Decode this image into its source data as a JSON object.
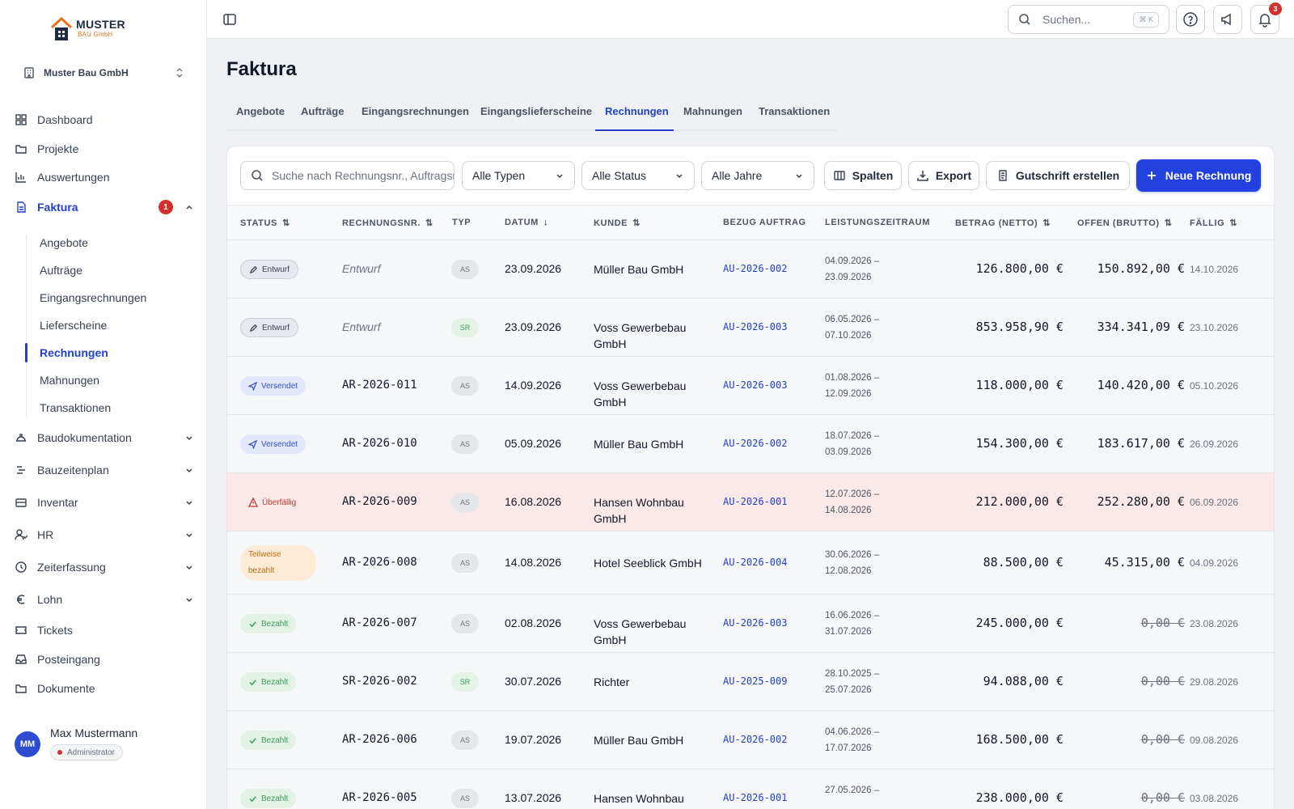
{
  "brand": {
    "name": "MUSTER",
    "sub": "BAU GmbH"
  },
  "company": "Muster Bau GmbH",
  "nav": [
    {
      "label": "Dashboard",
      "icon": "dashboard-icon"
    },
    {
      "label": "Projekte",
      "icon": "folder-icon"
    },
    {
      "label": "Auswertungen",
      "icon": "bar-chart-icon"
    },
    {
      "label": "Faktura",
      "icon": "document-icon",
      "badge": "1",
      "active": true
    },
    {
      "label": "Baudokumentation",
      "icon": "helmet-icon"
    },
    {
      "label": "Bauzeitenplan",
      "icon": "timeline-icon"
    },
    {
      "label": "Inventar",
      "icon": "box-icon"
    },
    {
      "label": "HR",
      "icon": "users-icon"
    },
    {
      "label": "Zeiterfassung",
      "icon": "clock-icon"
    },
    {
      "label": "Lohn",
      "icon": "euro-icon"
    },
    {
      "label": "Tickets",
      "icon": "ticket-icon"
    },
    {
      "label": "Posteingang",
      "icon": "inbox-icon"
    },
    {
      "label": "Dokumente",
      "icon": "folder-open-icon"
    }
  ],
  "subnav": [
    "Angebote",
    "Aufträge",
    "Eingangsrechnungen",
    "Lieferscheine",
    "Rechnungen",
    "Mahnungen",
    "Transaktionen"
  ],
  "user": {
    "initials": "MM",
    "name": "Max Mustermann",
    "role": "Administrator"
  },
  "topbar": {
    "search_placeholder": "Suchen...",
    "shortcut": "⌘ K",
    "notifications": "3"
  },
  "page": {
    "title": "Faktura"
  },
  "tabs": [
    "Angebote",
    "Aufträge",
    "Eingangsrechnungen",
    "Eingangslieferscheine",
    "Rechnungen",
    "Mahnungen",
    "Transaktionen"
  ],
  "filters": {
    "search_placeholder": "Suche nach Rechnungsnr., Auftragsnr.",
    "type": "Alle Typen",
    "status": "Alle Status",
    "year": "Alle Jahre",
    "columns": "Spalten",
    "export": "Export",
    "credit": "Gutschrift erstellen",
    "new": "Neue Rechnung"
  },
  "columns": [
    "STATUS",
    "RECHNUNGSNR.",
    "TYP",
    "DATUM",
    "KUNDE",
    "BEZUG AUFTRAG",
    "LEISTUNGSZEITRAUM",
    "BETRAG (NETTO)",
    "OFFEN (BRUTTO)",
    "FÄLLIG"
  ],
  "rows": [
    {
      "status": "Entwurf",
      "status_kind": "draft",
      "nr": "Entwurf",
      "typ": "AS",
      "datum": "23.09.2026",
      "kunde": "Müller Bau GmbH",
      "bezug": "AU-2026-002",
      "von": "04.09.2026 –",
      "bis": "23.09.2026",
      "betrag": "126.800,00 €",
      "offen": "150.892,00 €",
      "faellig": "14.10.2026"
    },
    {
      "status": "Entwurf",
      "status_kind": "draft",
      "nr": "Entwurf",
      "typ": "SR",
      "datum": "23.09.2026",
      "kunde": "Voss Gewerbebau GmbH",
      "bezug": "AU-2026-003",
      "von": "06.05.2026 –",
      "bis": "07.10.2026",
      "betrag": "853.958,90 €",
      "offen": "334.341,09 €",
      "faellig": "23.10.2026"
    },
    {
      "status": "Versendet",
      "status_kind": "sent",
      "nr": "AR-2026-011",
      "typ": "AS",
      "datum": "14.09.2026",
      "kunde": "Voss Gewerbebau GmbH",
      "bezug": "AU-2026-003",
      "von": "01.08.2026 –",
      "bis": "12.09.2026",
      "betrag": "118.000,00 €",
      "offen": "140.420,00 €",
      "faellig": "05.10.2026"
    },
    {
      "status": "Versendet",
      "status_kind": "sent",
      "nr": "AR-2026-010",
      "typ": "AS",
      "datum": "05.09.2026",
      "kunde": "Müller Bau GmbH",
      "bezug": "AU-2026-002",
      "von": "18.07.2026 –",
      "bis": "03.09.2026",
      "betrag": "154.300,00 €",
      "offen": "183.617,00 €",
      "faellig": "26.09.2026"
    },
    {
      "status": "Überfällig",
      "status_kind": "overdue",
      "nr": "AR-2026-009",
      "typ": "AS",
      "datum": "16.08.2026",
      "kunde": "Hansen Wohnbau GmbH",
      "bezug": "AU-2026-001",
      "von": "12.07.2026 –",
      "bis": "14.08.2026",
      "betrag": "212.000,00 €",
      "offen": "252.280,00 €",
      "faellig": "06.09.2026"
    },
    {
      "status": "Teilweise bezahlt",
      "status_kind": "partial",
      "nr": "AR-2026-008",
      "typ": "AS",
      "datum": "14.08.2026",
      "kunde": "Hotel Seeblick GmbH",
      "bezug": "AU-2026-004",
      "von": "30.06.2026 –",
      "bis": "12.08.2026",
      "betrag": "88.500,00 €",
      "offen": "45.315,00 €",
      "faellig": "04.09.2026"
    },
    {
      "status": "Bezahlt",
      "status_kind": "paid",
      "nr": "AR-2026-007",
      "typ": "AS",
      "datum": "02.08.2026",
      "kunde": "Voss Gewerbebau GmbH",
      "bezug": "AU-2026-003",
      "von": "16.06.2026 –",
      "bis": "31.07.2026",
      "betrag": "245.000,00 €",
      "offen": "0,00 €",
      "faellig": "23.08.2026"
    },
    {
      "status": "Bezahlt",
      "status_kind": "paid",
      "nr": "SR-2026-002",
      "typ": "SR",
      "datum": "30.07.2026",
      "kunde": "Richter",
      "bezug": "AU-2025-009",
      "von": "28.10.2025 –",
      "bis": "25.07.2026",
      "betrag": "94.088,00 €",
      "offen": "0,00 €",
      "faellig": "29.08.2026"
    },
    {
      "status": "Bezahlt",
      "status_kind": "paid",
      "nr": "AR-2026-006",
      "typ": "AS",
      "datum": "19.07.2026",
      "kunde": "Müller Bau GmbH",
      "bezug": "AU-2026-002",
      "von": "04.06.2026 –",
      "bis": "17.07.2026",
      "betrag": "168.500,00 €",
      "offen": "0,00 €",
      "faellig": "09.08.2026"
    },
    {
      "status": "Bezahlt",
      "status_kind": "paid",
      "nr": "AR-2026-005",
      "typ": "AS",
      "datum": "13.07.2026",
      "kunde": "Hansen Wohnbau GmbH",
      "bezug": "AU-2026-001",
      "von": "27.05.2026 –",
      "bis": "",
      "betrag": "238.000,00 €",
      "offen": "0,00 €",
      "faellig": "03.08.2026"
    }
  ]
}
